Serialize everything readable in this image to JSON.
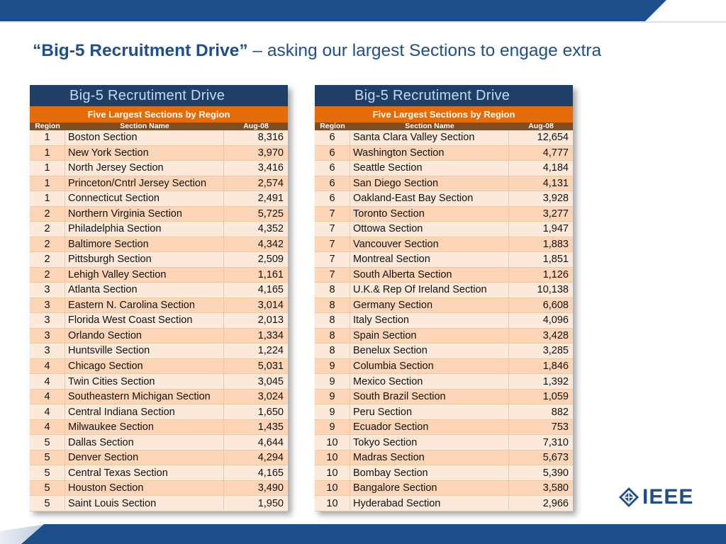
{
  "slide": {
    "title_bold": "“Big-5 Recruitment Drive”",
    "title_rest": " – asking our largest Sections to engage extra"
  },
  "left_table": {
    "title": "Big-5 Recrutiment Drive",
    "subtitle": "Five Largest Sections by Region",
    "headers": {
      "region": "Region",
      "name": "Section Name",
      "value": "Aug-08"
    },
    "rows": [
      {
        "region": "1",
        "name": "Boston Section",
        "value": "8,316"
      },
      {
        "region": "1",
        "name": "New York Section",
        "value": "3,970"
      },
      {
        "region": "1",
        "name": "North Jersey Section",
        "value": "3,416"
      },
      {
        "region": "1",
        "name": "Princeton/Cntrl Jersey Section",
        "value": "2,574"
      },
      {
        "region": "1",
        "name": "Connecticut Section",
        "value": "2,491"
      },
      {
        "region": "2",
        "name": "Northern Virginia Section",
        "value": "5,725"
      },
      {
        "region": "2",
        "name": "Philadelphia Section",
        "value": "4,352"
      },
      {
        "region": "2",
        "name": "Baltimore Section",
        "value": "4,342"
      },
      {
        "region": "2",
        "name": "Pittsburgh Section",
        "value": "2,509"
      },
      {
        "region": "2",
        "name": "Lehigh Valley Section",
        "value": "1,161"
      },
      {
        "region": "3",
        "name": "Atlanta Section",
        "value": "4,165"
      },
      {
        "region": "3",
        "name": "Eastern N. Carolina Section",
        "value": "3,014"
      },
      {
        "region": "3",
        "name": "Florida West Coast Section",
        "value": "2,013"
      },
      {
        "region": "3",
        "name": "Orlando Section",
        "value": "1,334"
      },
      {
        "region": "3",
        "name": "Huntsville Section",
        "value": "1,224"
      },
      {
        "region": "4",
        "name": "Chicago Section",
        "value": "5,031"
      },
      {
        "region": "4",
        "name": "Twin Cities Section",
        "value": "3,045"
      },
      {
        "region": "4",
        "name": "Southeastern Michigan Section",
        "value": "3,024"
      },
      {
        "region": "4",
        "name": "Central Indiana Section",
        "value": "1,650"
      },
      {
        "region": "4",
        "name": "Milwaukee Section",
        "value": "1,435"
      },
      {
        "region": "5",
        "name": "Dallas Section",
        "value": "4,644"
      },
      {
        "region": "5",
        "name": "Denver Section",
        "value": "4,294"
      },
      {
        "region": "5",
        "name": "Central Texas Section",
        "value": "4,165"
      },
      {
        "region": "5",
        "name": "Houston Section",
        "value": "3,490"
      },
      {
        "region": "5",
        "name": "Saint Louis Section",
        "value": "1,950"
      }
    ]
  },
  "right_table": {
    "title": "Big-5 Recrutiment Drive",
    "subtitle": "Five Largest Sections by Region",
    "headers": {
      "region": "Region",
      "name": "Section Name",
      "value": "Aug-08"
    },
    "rows": [
      {
        "region": "6",
        "name": "Santa Clara Valley Section",
        "value": "12,654"
      },
      {
        "region": "6",
        "name": "Washington Section",
        "value": "4,777"
      },
      {
        "region": "6",
        "name": "Seattle Section",
        "value": "4,184"
      },
      {
        "region": "6",
        "name": "San Diego Section",
        "value": "4,131"
      },
      {
        "region": "6",
        "name": "Oakland-East Bay Section",
        "value": "3,928"
      },
      {
        "region": "7",
        "name": "Toronto Section",
        "value": "3,277"
      },
      {
        "region": "7",
        "name": "Ottowa Section",
        "value": "1,947"
      },
      {
        "region": "7",
        "name": "Vancouver Section",
        "value": "1,883"
      },
      {
        "region": "7",
        "name": "Montreal Section",
        "value": "1,851"
      },
      {
        "region": "7",
        "name": "South Alberta Section",
        "value": "1,126"
      },
      {
        "region": "8",
        "name": "U.K.& Rep Of Ireland Section",
        "value": "10,138"
      },
      {
        "region": "8",
        "name": "Germany Section",
        "value": "6,608"
      },
      {
        "region": "8",
        "name": "Italy Section",
        "value": "4,096"
      },
      {
        "region": "8",
        "name": "Spain Section",
        "value": "3,428"
      },
      {
        "region": "8",
        "name": "Benelux Section",
        "value": "3,285"
      },
      {
        "region": "9",
        "name": "Columbia Section",
        "value": "1,846"
      },
      {
        "region": "9",
        "name": "Mexico Section",
        "value": "1,392"
      },
      {
        "region": "9",
        "name": "South Brazil Section",
        "value": "1,059"
      },
      {
        "region": "9",
        "name": "Peru Section",
        "value": "882"
      },
      {
        "region": "9",
        "name": "Ecuador Section",
        "value": "753"
      },
      {
        "region": "10",
        "name": "Tokyo Section",
        "value": "7,310"
      },
      {
        "region": "10",
        "name": "Madras Section",
        "value": "5,673"
      },
      {
        "region": "10",
        "name": "Bombay Section",
        "value": "5,390"
      },
      {
        "region": "10",
        "name": "Bangalore Section",
        "value": "3,580"
      },
      {
        "region": "10",
        "name": "Hyderabad Section",
        "value": "2,966"
      }
    ]
  },
  "logo": {
    "text": "IEEE"
  },
  "colors": {
    "brand_blue": "#1f4e8c",
    "table_header_navy": "#1f3f66",
    "subtitle_orange": "#e46c0a",
    "column_header_brown": "#7f4d22",
    "row_light": "#fde9d9",
    "row_dark": "#fbd5b5"
  }
}
